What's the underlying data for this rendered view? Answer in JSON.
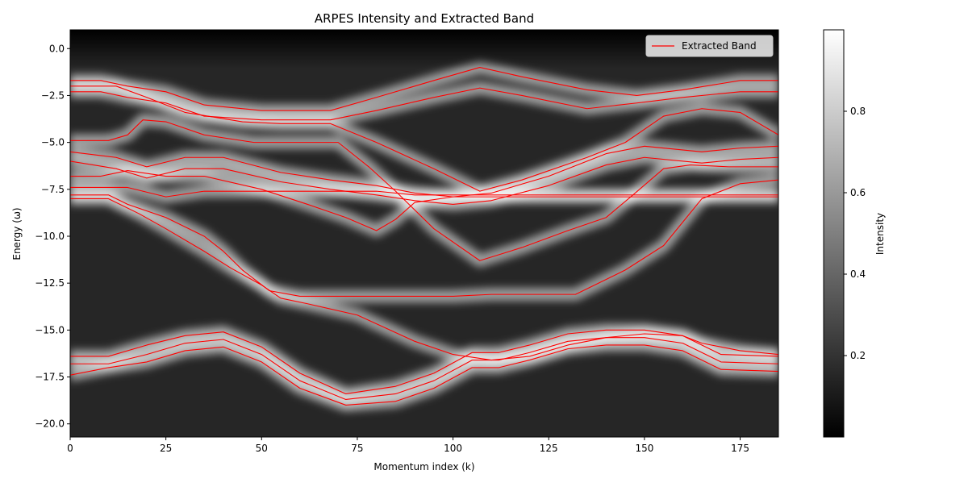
{
  "chart_data": {
    "type": "heatmap",
    "title": "ARPES Intensity and Extracted Band",
    "xlabel": "Momentum index (k)",
    "ylabel": "Energy (ω)",
    "xlim": [
      0,
      185
    ],
    "ylim": [
      -20.7,
      1.0
    ],
    "xticks": [
      0,
      25,
      50,
      75,
      100,
      125,
      150,
      175
    ],
    "yticks": [
      0.0,
      -2.5,
      -5.0,
      -7.5,
      -10.0,
      -12.5,
      -15.0,
      -17.5,
      -20.0
    ],
    "xtick_labels": [
      "0",
      "25",
      "50",
      "75",
      "100",
      "125",
      "150",
      "175"
    ],
    "ytick_labels": [
      "0.0",
      "−2.5",
      "−5.0",
      "−7.5",
      "−10.0",
      "−12.5",
      "−15.0",
      "−17.5",
      "−20.0"
    ],
    "colormap": "gray",
    "colorbar": {
      "label": "Intensity",
      "range": [
        0.0,
        1.0
      ],
      "ticks": [
        0.2,
        0.4,
        0.6,
        0.8
      ],
      "tick_labels": [
        "0.2",
        "0.4",
        "0.6",
        "0.8"
      ]
    },
    "legend": {
      "placement": "top-right",
      "entries": [
        "Extracted Band"
      ]
    },
    "line_color": "#ff0000",
    "bands": [
      {
        "x": [
          0,
          8,
          15,
          25,
          35,
          50,
          68,
          80,
          95,
          107,
          118,
          135,
          148,
          160,
          175,
          185
        ],
        "y": [
          -1.7,
          -1.7,
          -2.0,
          -2.3,
          -3.0,
          -3.3,
          -3.3,
          -2.6,
          -1.7,
          -1.0,
          -1.5,
          -2.2,
          -2.5,
          -2.2,
          -1.7,
          -1.7
        ]
      },
      {
        "x": [
          0,
          8,
          15,
          25,
          35,
          50,
          68,
          80,
          95,
          107,
          118,
          135,
          148,
          160,
          175,
          185
        ],
        "y": [
          -2.3,
          -2.3,
          -2.6,
          -2.9,
          -3.6,
          -3.8,
          -3.8,
          -3.3,
          -2.6,
          -2.1,
          -2.5,
          -3.2,
          -2.9,
          -2.6,
          -2.3,
          -2.3
        ]
      },
      {
        "x": [
          0,
          12,
          20,
          30,
          45,
          55,
          68,
          80,
          95,
          107,
          118,
          135,
          145,
          155,
          165,
          175,
          185
        ],
        "y": [
          -2.0,
          -2.0,
          -2.6,
          -3.4,
          -3.9,
          -4.0,
          -4.0,
          -5.0,
          -6.4,
          -7.6,
          -7.0,
          -5.8,
          -5.0,
          -3.6,
          -3.2,
          -3.4,
          -4.6
        ]
      },
      {
        "x": [
          0,
          10,
          15,
          19,
          25,
          35,
          48,
          60,
          70,
          78,
          85,
          95,
          107,
          118,
          130,
          140,
          147,
          155,
          162,
          172,
          185
        ],
        "y": [
          -4.9,
          -4.9,
          -4.6,
          -3.8,
          -3.9,
          -4.6,
          -5.0,
          -5.0,
          -5.0,
          -6.3,
          -7.6,
          -9.6,
          -11.3,
          -10.6,
          -9.7,
          -9.0,
          -7.8,
          -6.4,
          -6.2,
          -6.3,
          -6.3
        ]
      },
      {
        "x": [
          0,
          12,
          20,
          30,
          40,
          55,
          68,
          80,
          90,
          100,
          110,
          125,
          140,
          150,
          165,
          175,
          185
        ],
        "y": [
          -5.5,
          -5.8,
          -6.3,
          -5.8,
          -5.8,
          -6.6,
          -7.0,
          -7.3,
          -7.7,
          -7.9,
          -7.7,
          -6.8,
          -5.6,
          -5.2,
          -5.5,
          -5.3,
          -5.2
        ]
      },
      {
        "x": [
          0,
          12,
          20,
          30,
          40,
          55,
          68,
          80,
          90,
          100,
          110,
          125,
          140,
          150,
          165,
          175,
          185
        ],
        "y": [
          -6.0,
          -6.4,
          -6.9,
          -6.4,
          -6.4,
          -7.1,
          -7.5,
          -7.8,
          -8.1,
          -8.3,
          -8.1,
          -7.3,
          -6.2,
          -5.8,
          -6.1,
          -5.9,
          -5.8
        ]
      },
      {
        "x": [
          0,
          8,
          15,
          25,
          35,
          50,
          62,
          72,
          80,
          85,
          90,
          100,
          110,
          120,
          135,
          145,
          155,
          165,
          175,
          185
        ],
        "y": [
          -6.8,
          -6.8,
          -6.5,
          -6.8,
          -6.8,
          -7.5,
          -8.3,
          -9.0,
          -9.7,
          -9.1,
          -8.2,
          -7.9,
          -7.9,
          -7.9,
          -7.9,
          -7.9,
          -7.9,
          -7.9,
          -7.9,
          -7.9
        ]
      },
      {
        "x": [
          0,
          10,
          15,
          25,
          35,
          45,
          55,
          68,
          80,
          90,
          100,
          110,
          125,
          140,
          155,
          165,
          175,
          185
        ],
        "y": [
          -7.4,
          -7.4,
          -7.4,
          -7.9,
          -7.6,
          -7.6,
          -7.6,
          -7.6,
          -7.6,
          -7.8,
          -7.8,
          -7.8,
          -7.8,
          -7.8,
          -7.8,
          -7.8,
          -7.8,
          -7.8
        ]
      },
      {
        "x": [
          0,
          10,
          15,
          25,
          35,
          40,
          45,
          52,
          60,
          70,
          80,
          90,
          100,
          110,
          120,
          132,
          145,
          155,
          165,
          175,
          185
        ],
        "y": [
          -7.8,
          -7.8,
          -8.3,
          -9.0,
          -10.0,
          -10.8,
          -11.8,
          -12.9,
          -13.2,
          -13.2,
          -13.2,
          -13.2,
          -13.2,
          -13.1,
          -13.1,
          -13.1,
          -11.8,
          -10.5,
          -8.0,
          -7.2,
          -7.0
        ]
      },
      {
        "x": [
          0,
          10,
          18,
          25,
          35,
          42,
          50,
          55,
          62,
          75,
          90,
          100,
          110,
          120,
          130,
          140,
          150,
          160,
          165,
          175,
          185
        ],
        "y": [
          -8.0,
          -8.0,
          -8.8,
          -9.6,
          -10.8,
          -11.7,
          -12.6,
          -13.3,
          -13.6,
          -14.2,
          -15.6,
          -16.3,
          -16.6,
          -16.4,
          -15.8,
          -15.4,
          -15.2,
          -15.3,
          -15.7,
          -16.1,
          -16.3
        ]
      },
      {
        "x": [
          0,
          10,
          20,
          30,
          40,
          50,
          60,
          72,
          85,
          95,
          105,
          112,
          120,
          130,
          140,
          150,
          160,
          170,
          185
        ],
        "y": [
          -16.4,
          -16.4,
          -15.8,
          -15.3,
          -15.1,
          -15.9,
          -17.3,
          -18.4,
          -18.0,
          -17.3,
          -16.2,
          -16.2,
          -15.8,
          -15.2,
          -15.0,
          -15.0,
          -15.3,
          -16.3,
          -16.4
        ]
      },
      {
        "x": [
          0,
          10,
          20,
          30,
          40,
          50,
          60,
          72,
          85,
          95,
          105,
          112,
          120,
          130,
          140,
          150,
          160,
          170,
          185
        ],
        "y": [
          -16.8,
          -16.8,
          -16.3,
          -15.7,
          -15.5,
          -16.3,
          -17.7,
          -18.7,
          -18.4,
          -17.7,
          -16.6,
          -16.6,
          -16.2,
          -15.6,
          -15.4,
          -15.4,
          -15.7,
          -16.7,
          -16.8
        ]
      },
      {
        "x": [
          0,
          10,
          20,
          30,
          40,
          50,
          60,
          72,
          85,
          95,
          105,
          112,
          120,
          130,
          140,
          150,
          160,
          170,
          185
        ],
        "y": [
          -17.4,
          -17.0,
          -16.7,
          -16.1,
          -15.9,
          -16.7,
          -18.1,
          -19.0,
          -18.8,
          -18.1,
          -17.0,
          -17.0,
          -16.6,
          -16.0,
          -15.8,
          -15.8,
          -16.1,
          -17.1,
          -17.2
        ]
      }
    ]
  }
}
